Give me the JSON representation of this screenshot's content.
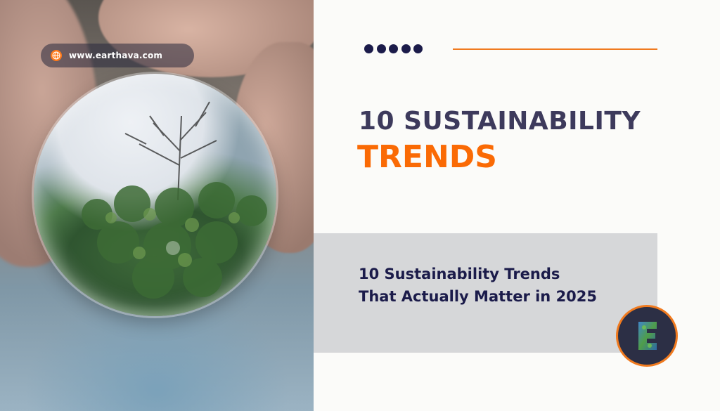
{
  "photo": {
    "url_badge": "www.earthava.com",
    "icon": "globe-icon"
  },
  "decor": {
    "dot_count": 5,
    "dot_color": "#1b1b4a",
    "rule_color": "#f07a1f"
  },
  "title": {
    "line1": "10 SUSTAINABILITY",
    "line2": "TRENDS"
  },
  "subtitle": "10 Sustainability Trends That Actually Matter in 2025",
  "logo": {
    "letter": "E",
    "icon": "earthava-logo-icon"
  },
  "colors": {
    "navy": "#1b1b4a",
    "slate": "#3d3a5c",
    "orange": "#fa6a05",
    "gray_panel": "#d6d7d9"
  }
}
